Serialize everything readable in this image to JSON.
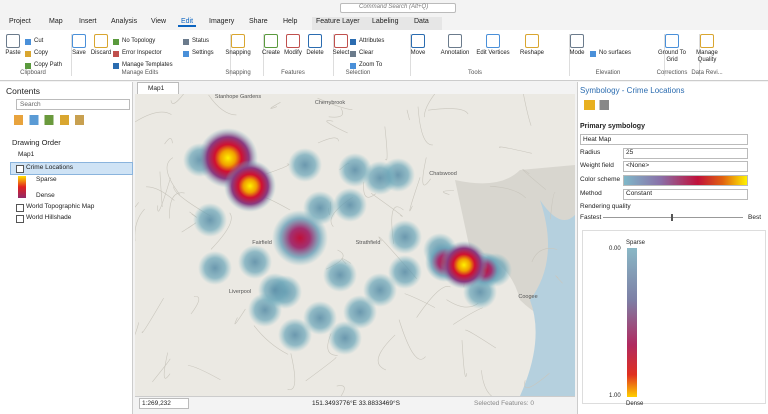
{
  "title_bar": {
    "search": "Command Search (Alt+Q)"
  },
  "ribbon": {
    "tabs": [
      "Project",
      "Map",
      "Insert",
      "Analysis",
      "View",
      "Edit",
      "Imagery",
      "Share",
      "Help"
    ],
    "contextual_tabs": [
      "Feature Layer",
      "Labeling",
      "Data"
    ],
    "groups": [
      {
        "label": "Clipboard",
        "buttons": [
          "Paste",
          "Cut",
          "Copy",
          "Copy Path"
        ]
      },
      {
        "label": "Manage Edits",
        "buttons": [
          "Save",
          "Discard",
          "No Topology",
          "Error Inspector",
          "Manage Templates",
          "Status",
          "Settings"
        ]
      },
      {
        "label": "Snapping",
        "buttons": [
          "Snapping"
        ]
      },
      {
        "label": "Features",
        "buttons": [
          "Create",
          "Modify",
          "Delete"
        ]
      },
      {
        "label": "Selection",
        "buttons": [
          "Select",
          "Attributes",
          "Clear",
          "Zoom To"
        ]
      },
      {
        "label": "Tools",
        "buttons": [
          "Move",
          "Annotation",
          "Edit Vertices",
          "Reshape"
        ]
      },
      {
        "label": "Elevation",
        "buttons": [
          "Mode",
          "No surfaces"
        ]
      },
      {
        "label": "Corrections",
        "buttons": [
          "Ground To Grid"
        ]
      },
      {
        "label": "Data Revi...",
        "buttons": [
          "Manage Quality"
        ]
      }
    ]
  },
  "contents": {
    "title": "Contents",
    "search": "Search",
    "heading": "Drawing Order",
    "items": [
      "Map1",
      "Crime Locations",
      "Sparse",
      "Dense",
      "World Topographic Map",
      "World Hillshade"
    ]
  },
  "map": {
    "tab": "Map1",
    "places": [
      "Stanhope Gardens",
      "Cherrybrook",
      "Chatswood",
      "Fairfield",
      "Strathfield",
      "Liverpool",
      "Coogee"
    ],
    "scale": "1:269,232",
    "coordinates": "151.3493776°E 33.8833469°S",
    "selected": "Selected Features: 0"
  },
  "symbology": {
    "title": "Symbology - Crime Locations",
    "heading": "Primary symbology",
    "renderer": "Heat Map",
    "fields": [
      {
        "label": "Radius",
        "value": "25"
      },
      {
        "label": "Weight field",
        "value": "<None>"
      },
      {
        "label": "Color scheme"
      },
      {
        "label": "Method",
        "value": "Constant"
      }
    ],
    "quality": "Rendering quality",
    "fastest": "Fastest",
    "best": "Best",
    "legend": {
      "top": "Sparse",
      "min": "0.00",
      "max": "1.00",
      "bottom": "Dense"
    }
  }
}
